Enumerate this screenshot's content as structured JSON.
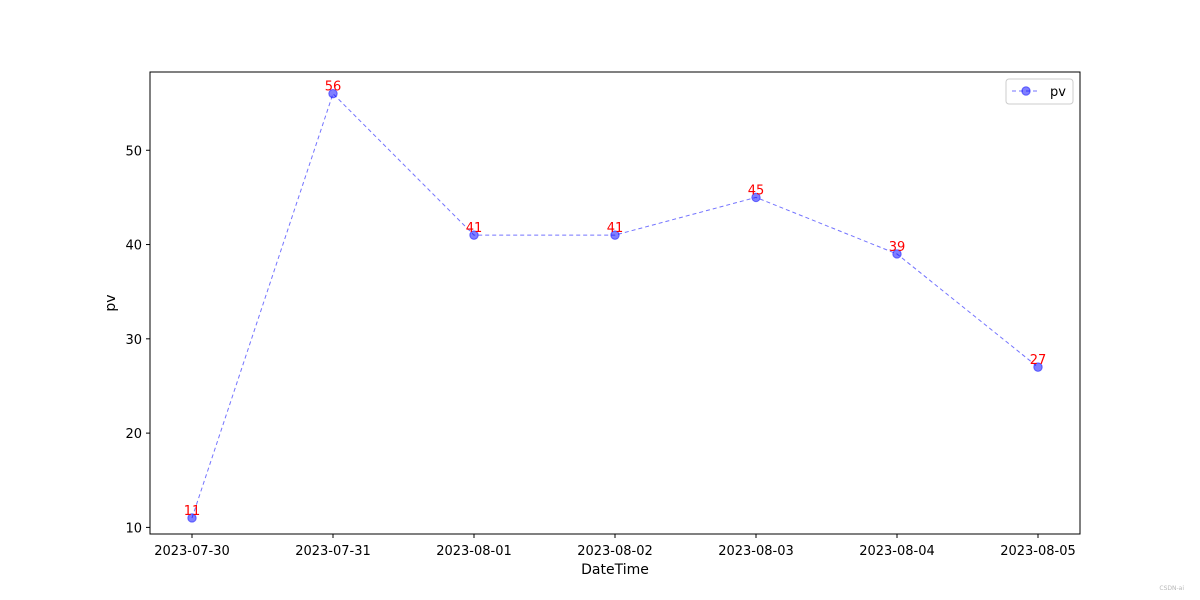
{
  "chart_data": {
    "type": "line",
    "title": "",
    "xlabel": "DateTime",
    "ylabel": "pv",
    "categories": [
      "2023-07-30",
      "2023-07-31",
      "2023-08-01",
      "2023-08-02",
      "2023-08-03",
      "2023-08-04",
      "2023-08-05"
    ],
    "series": [
      {
        "name": "pv",
        "values": [
          11,
          56,
          41,
          41,
          45,
          39,
          27
        ],
        "color": "#0000ff",
        "line_style": "dashed",
        "marker": "circle"
      }
    ],
    "data_label_color": "#ff0000",
    "ylim": [
      9.3,
      58.3
    ],
    "yticks": [
      10,
      20,
      30,
      40,
      50
    ],
    "grid": false,
    "legend_position": "top-right"
  },
  "watermark": "CSDN-ai"
}
